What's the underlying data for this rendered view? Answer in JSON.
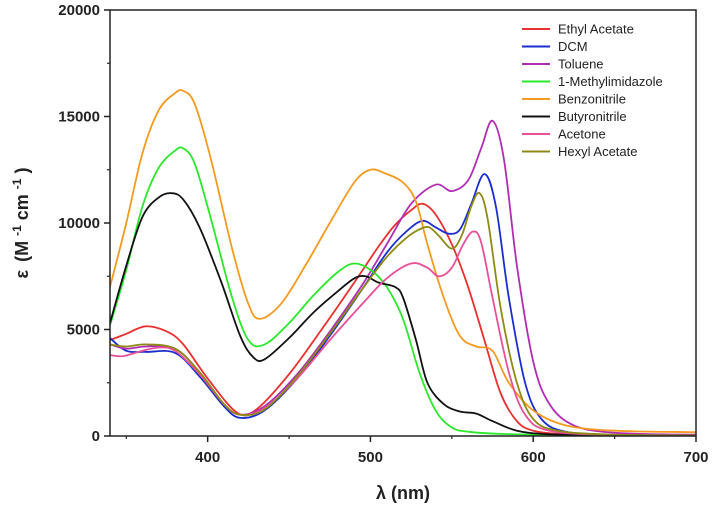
{
  "chart_data": {
    "type": "line",
    "title": "",
    "xlabel": "λ (nm)",
    "ylabel": "ε (M⁻¹cm⁻¹)",
    "ylabel_parts": {
      "base": "ε",
      "open": "(M",
      "exp1": "-1",
      "mid": "cm",
      "exp2": "-1",
      "close": ")"
    },
    "xlim": [
      340,
      700
    ],
    "ylim": [
      0,
      20000
    ],
    "x_ticks": [
      400,
      500,
      600,
      700
    ],
    "y_ticks": [
      0,
      5000,
      10000,
      15000,
      20000
    ],
    "grid": false,
    "legend_position": "top-right",
    "series": [
      {
        "name": "Ethyl Acetate",
        "color": "#e8302e",
        "points": [
          [
            340,
            4500
          ],
          [
            350,
            4800
          ],
          [
            362,
            5150
          ],
          [
            375,
            4900
          ],
          [
            385,
            4300
          ],
          [
            400,
            2700
          ],
          [
            418,
            1100
          ],
          [
            430,
            1250
          ],
          [
            450,
            2900
          ],
          [
            470,
            5000
          ],
          [
            490,
            7200
          ],
          [
            505,
            8900
          ],
          [
            515,
            9900
          ],
          [
            525,
            10600
          ],
          [
            532,
            10900
          ],
          [
            540,
            10400
          ],
          [
            550,
            9000
          ],
          [
            560,
            7000
          ],
          [
            570,
            4500
          ],
          [
            580,
            2000
          ],
          [
            590,
            700
          ],
          [
            600,
            250
          ],
          [
            620,
            80
          ],
          [
            650,
            30
          ],
          [
            700,
            20
          ]
        ]
      },
      {
        "name": "DCM",
        "color": "#1a2ecf",
        "points": [
          [
            340,
            4600
          ],
          [
            350,
            4000
          ],
          [
            362,
            3950
          ],
          [
            380,
            3900
          ],
          [
            395,
            2800
          ],
          [
            410,
            1400
          ],
          [
            420,
            850
          ],
          [
            435,
            1200
          ],
          [
            455,
            2700
          ],
          [
            475,
            4700
          ],
          [
            495,
            6900
          ],
          [
            510,
            8600
          ],
          [
            522,
            9600
          ],
          [
            532,
            10100
          ],
          [
            540,
            9800
          ],
          [
            548,
            9500
          ],
          [
            555,
            9700
          ],
          [
            562,
            10900
          ],
          [
            570,
            12300
          ],
          [
            577,
            10800
          ],
          [
            585,
            6500
          ],
          [
            595,
            2500
          ],
          [
            605,
            800
          ],
          [
            620,
            200
          ],
          [
            650,
            50
          ],
          [
            700,
            20
          ]
        ]
      },
      {
        "name": "Toluene",
        "color": "#b02db3",
        "points": [
          [
            340,
            4300
          ],
          [
            350,
            4100
          ],
          [
            362,
            4200
          ],
          [
            380,
            4100
          ],
          [
            395,
            3000
          ],
          [
            410,
            1500
          ],
          [
            420,
            1000
          ],
          [
            435,
            1400
          ],
          [
            455,
            2900
          ],
          [
            475,
            4900
          ],
          [
            495,
            7100
          ],
          [
            510,
            9000
          ],
          [
            525,
            10900
          ],
          [
            540,
            11800
          ],
          [
            550,
            11500
          ],
          [
            560,
            12000
          ],
          [
            568,
            13500
          ],
          [
            575,
            14800
          ],
          [
            582,
            13000
          ],
          [
            590,
            8000
          ],
          [
            600,
            3500
          ],
          [
            610,
            1500
          ],
          [
            625,
            500
          ],
          [
            650,
            150
          ],
          [
            700,
            60
          ]
        ]
      },
      {
        "name": "1-Methylimidazole",
        "color": "#2be82b",
        "points": [
          [
            340,
            5200
          ],
          [
            350,
            7800
          ],
          [
            360,
            10800
          ],
          [
            370,
            12600
          ],
          [
            380,
            13400
          ],
          [
            385,
            13500
          ],
          [
            392,
            12800
          ],
          [
            402,
            10200
          ],
          [
            415,
            6500
          ],
          [
            425,
            4500
          ],
          [
            435,
            4300
          ],
          [
            450,
            5300
          ],
          [
            465,
            6600
          ],
          [
            480,
            7700
          ],
          [
            490,
            8100
          ],
          [
            500,
            7800
          ],
          [
            510,
            7000
          ],
          [
            520,
            5500
          ],
          [
            530,
            3000
          ],
          [
            540,
            1200
          ],
          [
            550,
            400
          ],
          [
            560,
            200
          ],
          [
            580,
            100
          ],
          [
            620,
            50
          ],
          [
            700,
            30
          ]
        ]
      },
      {
        "name": "Benzonitrile",
        "color": "#f59a20",
        "points": [
          [
            340,
            7000
          ],
          [
            350,
            10000
          ],
          [
            360,
            13300
          ],
          [
            370,
            15300
          ],
          [
            380,
            16100
          ],
          [
            385,
            16200
          ],
          [
            392,
            15600
          ],
          [
            402,
            13000
          ],
          [
            415,
            8800
          ],
          [
            425,
            6200
          ],
          [
            432,
            5500
          ],
          [
            445,
            6200
          ],
          [
            460,
            8000
          ],
          [
            475,
            10000
          ],
          [
            490,
            11900
          ],
          [
            500,
            12500
          ],
          [
            510,
            12300
          ],
          [
            520,
            11900
          ],
          [
            528,
            11000
          ],
          [
            535,
            9000
          ],
          [
            545,
            6500
          ],
          [
            555,
            4700
          ],
          [
            565,
            4200
          ],
          [
            575,
            4000
          ],
          [
            585,
            2500
          ],
          [
            600,
            1200
          ],
          [
            620,
            500
          ],
          [
            650,
            250
          ],
          [
            700,
            180
          ]
        ]
      },
      {
        "name": "Butyronitrile",
        "color": "#111111",
        "points": [
          [
            340,
            5300
          ],
          [
            350,
            8000
          ],
          [
            360,
            10300
          ],
          [
            370,
            11200
          ],
          [
            378,
            11400
          ],
          [
            385,
            11100
          ],
          [
            395,
            9800
          ],
          [
            408,
            7300
          ],
          [
            420,
            4700
          ],
          [
            428,
            3700
          ],
          [
            435,
            3600
          ],
          [
            450,
            4600
          ],
          [
            465,
            5800
          ],
          [
            480,
            6800
          ],
          [
            490,
            7400
          ],
          [
            497,
            7500
          ],
          [
            505,
            7200
          ],
          [
            515,
            7000
          ],
          [
            520,
            6500
          ],
          [
            528,
            4500
          ],
          [
            535,
            2500
          ],
          [
            545,
            1500
          ],
          [
            555,
            1150
          ],
          [
            565,
            1050
          ],
          [
            575,
            700
          ],
          [
            590,
            250
          ],
          [
            610,
            80
          ],
          [
            650,
            30
          ],
          [
            700,
            20
          ]
        ]
      },
      {
        "name": "Acetone",
        "color": "#e8509a",
        "points": [
          [
            340,
            3800
          ],
          [
            348,
            3750
          ],
          [
            360,
            4000
          ],
          [
            370,
            4150
          ],
          [
            380,
            4000
          ],
          [
            395,
            2900
          ],
          [
            410,
            1500
          ],
          [
            420,
            1000
          ],
          [
            435,
            1300
          ],
          [
            455,
            2700
          ],
          [
            475,
            4500
          ],
          [
            495,
            6200
          ],
          [
            510,
            7400
          ],
          [
            525,
            8100
          ],
          [
            535,
            7900
          ],
          [
            542,
            7500
          ],
          [
            550,
            7900
          ],
          [
            557,
            9000
          ],
          [
            563,
            9600
          ],
          [
            568,
            9100
          ],
          [
            575,
            6500
          ],
          [
            585,
            3000
          ],
          [
            595,
            1000
          ],
          [
            610,
            250
          ],
          [
            650,
            40
          ],
          [
            700,
            20
          ]
        ]
      },
      {
        "name": "Hexyl Acetate",
        "color": "#8e8a14",
        "points": [
          [
            340,
            4300
          ],
          [
            350,
            4200
          ],
          [
            362,
            4300
          ],
          [
            380,
            4100
          ],
          [
            395,
            3000
          ],
          [
            410,
            1500
          ],
          [
            420,
            1000
          ],
          [
            435,
            1250
          ],
          [
            455,
            2800
          ],
          [
            475,
            4800
          ],
          [
            495,
            6900
          ],
          [
            510,
            8400
          ],
          [
            522,
            9300
          ],
          [
            530,
            9700
          ],
          [
            536,
            9800
          ],
          [
            542,
            9400
          ],
          [
            550,
            8800
          ],
          [
            556,
            9400
          ],
          [
            562,
            10800
          ],
          [
            567,
            11400
          ],
          [
            572,
            10200
          ],
          [
            580,
            6000
          ],
          [
            590,
            2500
          ],
          [
            600,
            800
          ],
          [
            615,
            250
          ],
          [
            650,
            60
          ],
          [
            700,
            20
          ]
        ]
      }
    ]
  }
}
